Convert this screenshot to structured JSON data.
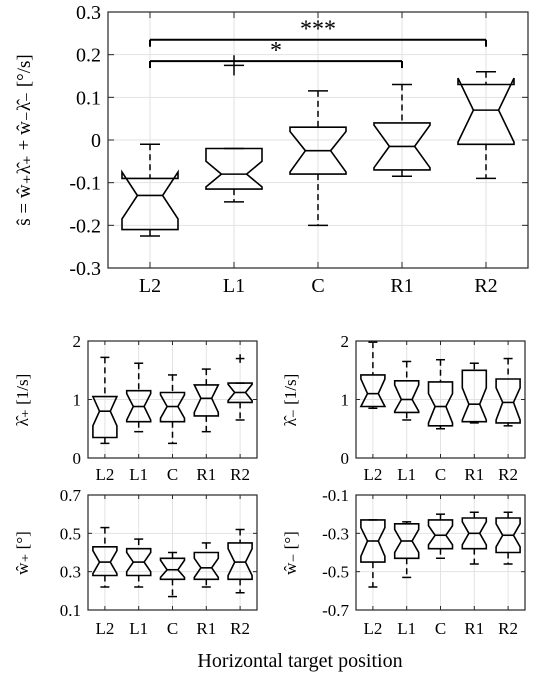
{
  "figure": {
    "xlabel": "Horizontal target position"
  },
  "chart_data": [
    {
      "type": "boxplot",
      "ylabel_prefix": "ŝ = ŵ",
      "ylabel": "ŝ = ŵ₊λ̂₊ + ŵ₋λ̂₋ [°/s]",
      "ylim": [
        -0.3,
        0.3
      ],
      "yticks": [
        "-0.3",
        "-0.2",
        "-0.1",
        "0",
        "0.1",
        "0.2",
        "0.3"
      ],
      "ytick_values": [
        -0.3,
        -0.2,
        -0.1,
        0,
        0.1,
        0.2,
        0.3
      ],
      "categories": [
        "L2",
        "L1",
        "C",
        "R1",
        "R2"
      ],
      "grid": true,
      "boxes": [
        {
          "whisker_low": -0.225,
          "q1": -0.21,
          "notch_low": -0.185,
          "median": -0.13,
          "notch_high": -0.075,
          "q3": -0.09,
          "whisker_high": -0.01,
          "outliers": []
        },
        {
          "whisker_low": -0.145,
          "q1": -0.115,
          "notch_low": -0.11,
          "median": -0.08,
          "notch_high": -0.05,
          "q3": -0.02,
          "whisker_high": -0.02,
          "outliers": [
            0.175
          ]
        },
        {
          "whisker_low": -0.2,
          "q1": -0.08,
          "notch_low": -0.075,
          "median": -0.025,
          "notch_high": 0.02,
          "q3": 0.03,
          "whisker_high": 0.115,
          "outliers": []
        },
        {
          "whisker_low": -0.085,
          "q1": -0.07,
          "notch_low": -0.065,
          "median": -0.015,
          "notch_high": 0.035,
          "q3": 0.04,
          "whisker_high": 0.13,
          "outliers": []
        },
        {
          "whisker_low": -0.09,
          "q1": -0.01,
          "notch_low": -0.005,
          "median": 0.07,
          "notch_high": 0.145,
          "q3": 0.13,
          "whisker_high": 0.16,
          "outliers": []
        }
      ],
      "significance": [
        {
          "from": "L2",
          "to": "R2",
          "y": 0.235,
          "label": "***"
        },
        {
          "from": "L2",
          "to": "R1",
          "y": 0.185,
          "label": "*"
        }
      ]
    },
    {
      "type": "boxplot",
      "ylabel": "λ̂₊ [1/s]",
      "ylim": [
        0,
        2
      ],
      "yticks": [
        "0",
        "1",
        "2"
      ],
      "ytick_values": [
        0,
        1,
        2
      ],
      "categories": [
        "L2",
        "L1",
        "C",
        "R1",
        "R2"
      ],
      "grid": true,
      "boxes": [
        {
          "whisker_low": 0.25,
          "q1": 0.35,
          "notch_low": 0.55,
          "median": 0.8,
          "notch_high": 1.05,
          "q3": 1.05,
          "whisker_high": 1.72,
          "outliers": []
        },
        {
          "whisker_low": 0.45,
          "q1": 0.62,
          "notch_low": 0.65,
          "median": 0.88,
          "notch_high": 1.1,
          "q3": 1.15,
          "whisker_high": 1.62,
          "outliers": []
        },
        {
          "whisker_low": 0.25,
          "q1": 0.62,
          "notch_low": 0.68,
          "median": 0.88,
          "notch_high": 1.08,
          "q3": 1.12,
          "whisker_high": 1.42,
          "outliers": []
        },
        {
          "whisker_low": 0.45,
          "q1": 0.72,
          "notch_low": 0.78,
          "median": 1.02,
          "notch_high": 1.25,
          "q3": 1.25,
          "whisker_high": 1.52,
          "outliers": []
        },
        {
          "whisker_low": 0.65,
          "q1": 0.95,
          "notch_low": 0.98,
          "median": 1.12,
          "notch_high": 1.26,
          "q3": 1.28,
          "whisker_high": 1.28,
          "outliers": [
            1.7
          ]
        }
      ]
    },
    {
      "type": "boxplot",
      "ylabel": "λ̂₋ [1/s]",
      "ylim": [
        0,
        2
      ],
      "yticks": [
        "0",
        "1",
        "2"
      ],
      "ytick_values": [
        0,
        1,
        2
      ],
      "categories": [
        "L2",
        "L1",
        "C",
        "R1",
        "R2"
      ],
      "grid": true,
      "boxes": [
        {
          "whisker_low": 0.85,
          "q1": 0.88,
          "notch_low": 0.88,
          "median": 1.1,
          "notch_high": 1.35,
          "q3": 1.42,
          "whisker_high": 1.98,
          "outliers": []
        },
        {
          "whisker_low": 0.65,
          "q1": 0.78,
          "notch_low": 0.8,
          "median": 1.0,
          "notch_high": 1.25,
          "q3": 1.32,
          "whisker_high": 1.65,
          "outliers": []
        },
        {
          "whisker_low": 0.5,
          "q1": 0.55,
          "notch_low": 0.6,
          "median": 0.88,
          "notch_high": 1.1,
          "q3": 1.3,
          "whisker_high": 1.68,
          "outliers": []
        },
        {
          "whisker_low": 0.6,
          "q1": 0.62,
          "notch_low": 0.65,
          "median": 0.92,
          "notch_high": 1.2,
          "q3": 1.5,
          "whisker_high": 1.62,
          "outliers": []
        },
        {
          "whisker_low": 0.55,
          "q1": 0.6,
          "notch_low": 0.65,
          "median": 0.95,
          "notch_high": 1.2,
          "q3": 1.35,
          "whisker_high": 1.7,
          "outliers": []
        }
      ]
    },
    {
      "type": "boxplot",
      "ylabel": "ŵ₊ [°]",
      "ylim": [
        0.1,
        0.7
      ],
      "yticks": [
        "0.1",
        "0.3",
        "0.5",
        "0.7"
      ],
      "ytick_values": [
        0.1,
        0.3,
        0.5,
        0.7
      ],
      "categories": [
        "L2",
        "L1",
        "C",
        "R1",
        "R2"
      ],
      "grid": true,
      "boxes": [
        {
          "whisker_low": 0.22,
          "q1": 0.28,
          "notch_low": 0.29,
          "median": 0.35,
          "notch_high": 0.41,
          "q3": 0.43,
          "whisker_high": 0.53,
          "outliers": []
        },
        {
          "whisker_low": 0.22,
          "q1": 0.28,
          "notch_low": 0.3,
          "median": 0.35,
          "notch_high": 0.4,
          "q3": 0.42,
          "whisker_high": 0.47,
          "outliers": []
        },
        {
          "whisker_low": 0.17,
          "q1": 0.26,
          "notch_low": 0.27,
          "median": 0.31,
          "notch_high": 0.36,
          "q3": 0.37,
          "whisker_high": 0.4,
          "outliers": []
        },
        {
          "whisker_low": 0.22,
          "q1": 0.26,
          "notch_low": 0.27,
          "median": 0.32,
          "notch_high": 0.37,
          "q3": 0.4,
          "whisker_high": 0.45,
          "outliers": []
        },
        {
          "whisker_low": 0.19,
          "q1": 0.26,
          "notch_low": 0.28,
          "median": 0.35,
          "notch_high": 0.42,
          "q3": 0.45,
          "whisker_high": 0.52,
          "outliers": []
        }
      ]
    },
    {
      "type": "boxplot",
      "ylabel": "ŵ₋ [°]",
      "ylim": [
        -0.7,
        -0.1
      ],
      "yticks": [
        "-0.7",
        "-0.5",
        "-0.3",
        "-0.1"
      ],
      "ytick_values": [
        -0.7,
        -0.5,
        -0.3,
        -0.1
      ],
      "categories": [
        "L2",
        "L1",
        "C",
        "R1",
        "R2"
      ],
      "grid": true,
      "boxes": [
        {
          "whisker_low": -0.58,
          "q1": -0.45,
          "notch_low": -0.42,
          "median": -0.34,
          "notch_high": -0.27,
          "q3": -0.23,
          "whisker_high": -0.23,
          "outliers": []
        },
        {
          "whisker_low": -0.53,
          "q1": -0.43,
          "notch_low": -0.4,
          "median": -0.34,
          "notch_high": -0.28,
          "q3": -0.25,
          "whisker_high": -0.24,
          "outliers": []
        },
        {
          "whisker_low": -0.43,
          "q1": -0.38,
          "notch_low": -0.36,
          "median": -0.31,
          "notch_high": -0.26,
          "q3": -0.23,
          "whisker_high": -0.2,
          "outliers": []
        },
        {
          "whisker_low": -0.46,
          "q1": -0.38,
          "notch_low": -0.36,
          "median": -0.3,
          "notch_high": -0.24,
          "q3": -0.22,
          "whisker_high": -0.19,
          "outliers": []
        },
        {
          "whisker_low": -0.46,
          "q1": -0.4,
          "notch_low": -0.37,
          "median": -0.31,
          "notch_high": -0.25,
          "q3": -0.22,
          "whisker_high": -0.19,
          "outliers": []
        }
      ]
    }
  ]
}
